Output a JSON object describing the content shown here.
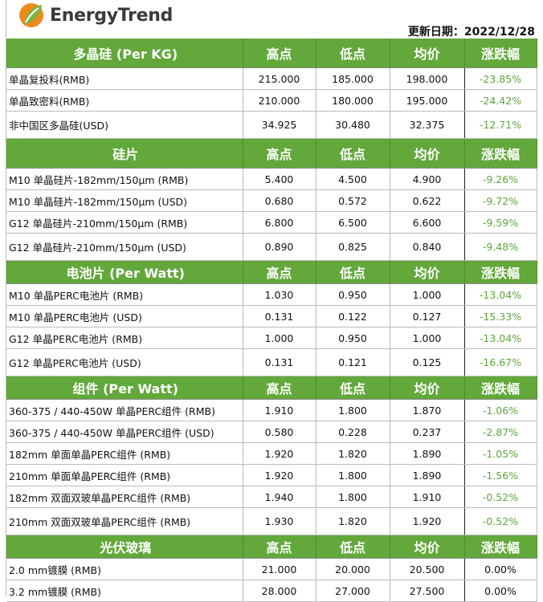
{
  "brand": "EnergyTrend",
  "update_date": "更新日期：2022/12/28",
  "colors": {
    "header_bg": "#62a83a",
    "positive_change": "#5aa83a"
  },
  "columns": [
    "高点",
    "低点",
    "均价",
    "涨跌幅"
  ],
  "sections": [
    {
      "title": "多晶硅 (Per KG)",
      "rows": [
        [
          "单晶复投料(RMB)",
          "215.000",
          "185.000",
          "198.000",
          "-23.85%"
        ],
        [
          "单晶致密料(RMB)",
          "210.000",
          "180.000",
          "195.000",
          "-24.42%"
        ],
        [
          "非中国区多晶硅(USD)",
          "34.925",
          "30.480",
          "32.375",
          "-12.71%"
        ]
      ]
    },
    {
      "title": "硅片",
      "rows": [
        [
          "M10 单晶硅片-182mm/150μm (RMB)",
          "5.400",
          "4.500",
          "4.900",
          "-9.26%"
        ],
        [
          "M10 单晶硅片-182mm/150μm (USD)",
          "0.680",
          "0.572",
          "0.622",
          "-9.72%"
        ],
        [
          "G12 单晶硅片-210mm/150μm  (RMB)",
          "6.800",
          "6.500",
          "6.600",
          "-9.59%"
        ],
        [
          "G12 单晶硅片-210mm/150μm  (USD)",
          "0.890",
          "0.825",
          "0.840",
          "-9.48%"
        ]
      ]
    },
    {
      "title": "电池片 (Per Watt)",
      "rows": [
        [
          "M10 单晶PERC电池片 (RMB)",
          "1.030",
          "0.950",
          "1.000",
          "-13.04%"
        ],
        [
          "M10 单晶PERC电池片 (USD)",
          "0.131",
          "0.122",
          "0.127",
          "-15.33%"
        ],
        [
          "G12 单晶PERC电池片 (RMB)",
          "1.000",
          "0.950",
          "1.000",
          "-13.04%"
        ],
        [
          "G12 单晶PERC电池片 (USD)",
          "0.131",
          "0.121",
          "0.125",
          "-16.67%"
        ]
      ]
    },
    {
      "title": "组件 (Per Watt)",
      "rows": [
        [
          "360-375 / 440-450W 单晶PERC组件 (RMB)",
          "1.910",
          "1.800",
          "1.870",
          "-1.06%"
        ],
        [
          "360-375 / 440-450W 单晶PERC组件 (USD)",
          "0.580",
          "0.228",
          "0.237",
          "-2.87%"
        ],
        [
          "182mm 单面单晶PERC组件 (RMB)",
          "1.920",
          "1.820",
          "1.890",
          "-1.05%"
        ],
        [
          "210mm 单面单晶PERC组件 (RMB)",
          "1.920",
          "1.800",
          "1.890",
          "-1.56%"
        ],
        [
          "182mm 双面双玻单晶PERC组件 (RMB)",
          "1.940",
          "1.800",
          "1.910",
          "-0.52%"
        ],
        [
          "210mm 双面双玻单晶PERC组件 (RMB)",
          "1.930",
          "1.820",
          "1.920",
          "-0.52%"
        ]
      ]
    },
    {
      "title": "光伏玻璃",
      "rows": [
        [
          "2.0 mm镀膜 (RMB)",
          "21.000",
          "20.000",
          "20.500",
          "0.00%"
        ],
        [
          "3.2 mm镀膜 (RMB)",
          "28.000",
          "27.000",
          "27.500",
          "0.00%"
        ]
      ]
    }
  ]
}
